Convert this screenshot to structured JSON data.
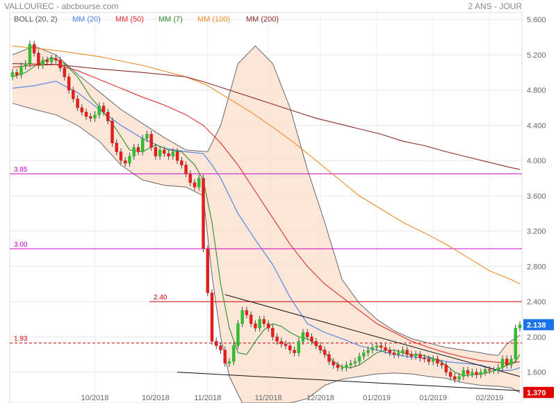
{
  "header": {
    "title": "VALLOUREC - abcbourse.com",
    "period": "2 ANS - JOUR"
  },
  "legend": [
    {
      "label": "BOLL (20, 2)",
      "color": "#555555"
    },
    {
      "label": "MM (20)",
      "color": "#4a7ee8"
    },
    {
      "label": "MM (50)",
      "color": "#e02a2a"
    },
    {
      "label": "MM (7)",
      "color": "#2e8b2e"
    },
    {
      "label": "MM (100)",
      "color": "#f08a24"
    },
    {
      "label": "MM (200)",
      "color": "#8b2a2a"
    }
  ],
  "colors": {
    "up_candle": "#33bb33",
    "down_candle": "#e02020",
    "boll_fill": "#fbe3d4",
    "boll_line": "#666666",
    "magenta": "#cc00cc",
    "resistance": "#cc0000",
    "price_badge": "#1a73e8",
    "low_badge": "#e00000"
  },
  "chart_data": {
    "type": "line",
    "title": "VALLOUREC",
    "x_tick_labels": [
      "10/2018",
      "10/2018",
      "11/2018",
      "11/2018",
      "12/2018",
      "01/2019",
      "01/2019",
      "02/2019"
    ],
    "y_ticks": [
      1.6,
      2.0,
      2.4,
      2.8,
      3.2,
      3.6,
      4.0,
      4.4,
      4.8,
      5.2,
      5.6
    ],
    "y_tick_labels": [
      "1.600",
      "2.000",
      "2.400",
      "2.800",
      "3.200",
      "3.600",
      "4.000",
      "4.400",
      "4.800",
      "5.200",
      "5.600"
    ],
    "ylim": [
      1.25,
      5.68
    ],
    "log_scale": false,
    "grid": true,
    "hlines": [
      {
        "value": 3.85,
        "label": "3.85",
        "color": "#cc00cc",
        "style": "solid"
      },
      {
        "value": 3.0,
        "label": "3.00",
        "color": "#cc00cc",
        "style": "solid"
      },
      {
        "value": 2.4,
        "label": "2.40",
        "color": "#cc0000",
        "style": "solid"
      },
      {
        "value": 1.93,
        "label": "1.93",
        "color": "#cc0000",
        "style": "dashed"
      }
    ],
    "price_badges": [
      {
        "value": 2.138,
        "label": "2.138",
        "color": "#1a73e8"
      },
      {
        "value": 1.37,
        "label": "1.370",
        "color": "#e00000"
      }
    ],
    "closes": [
      5.0,
      4.97,
      5.07,
      5.1,
      5.32,
      5.22,
      5.08,
      5.14,
      5.12,
      5.16,
      5.14,
      5.05,
      4.95,
      4.8,
      4.7,
      4.6,
      4.55,
      4.5,
      4.48,
      4.52,
      4.62,
      4.55,
      4.45,
      4.2,
      4.1,
      4.0,
      3.97,
      4.05,
      4.15,
      4.1,
      4.25,
      4.3,
      4.15,
      4.05,
      4.12,
      4.08,
      4.05,
      4.1,
      4.0,
      3.95,
      3.85,
      3.75,
      3.7,
      3.8,
      3.0,
      2.5,
      1.95,
      1.9,
      1.85,
      1.7,
      1.72,
      1.9,
      2.15,
      2.3,
      2.25,
      2.15,
      2.1,
      2.2,
      2.15,
      2.1,
      2.0,
      1.95,
      1.92,
      1.9,
      1.85,
      1.82,
      1.95,
      2.05,
      2.0,
      1.95,
      1.9,
      1.85,
      1.8,
      1.72,
      1.68,
      1.65,
      1.65,
      1.68,
      1.7,
      1.72,
      1.78,
      1.82,
      1.85,
      1.88,
      1.9,
      1.88,
      1.85,
      1.82,
      1.8,
      1.82,
      1.85,
      1.8,
      1.78,
      1.8,
      1.76,
      1.75,
      1.72,
      1.75,
      1.7,
      1.68,
      1.6,
      1.55,
      1.52,
      1.55,
      1.62,
      1.58,
      1.6,
      1.57,
      1.6,
      1.63,
      1.62,
      1.62,
      1.65,
      1.75,
      1.68,
      1.75,
      2.1,
      2.138
    ],
    "series": [
      {
        "name": "BOLL upper (20, 2)",
        "values": [
          [
            0,
            5.2
          ],
          [
            5,
            5.3
          ],
          [
            10,
            5.2
          ],
          [
            15,
            4.98
          ],
          [
            20,
            4.78
          ],
          [
            25,
            4.58
          ],
          [
            30,
            4.42
          ],
          [
            35,
            4.26
          ],
          [
            40,
            4.12
          ],
          [
            45,
            4.1
          ],
          [
            48,
            4.4
          ],
          [
            52,
            5.1
          ],
          [
            56,
            5.3
          ],
          [
            60,
            5.1
          ],
          [
            64,
            4.6
          ],
          [
            68,
            3.9
          ],
          [
            72,
            3.3
          ],
          [
            76,
            2.65
          ],
          [
            80,
            2.38
          ],
          [
            84,
            2.2
          ],
          [
            88,
            2.07
          ],
          [
            92,
            1.98
          ],
          [
            96,
            1.93
          ],
          [
            100,
            1.88
          ],
          [
            104,
            1.85
          ],
          [
            108,
            1.82
          ],
          [
            110,
            1.8
          ],
          [
            112,
            1.79
          ],
          [
            114,
            1.92
          ],
          [
            117,
            2.02
          ]
        ]
      },
      {
        "name": "BOLL lower (20, 2)",
        "values": [
          [
            0,
            4.65
          ],
          [
            5,
            4.58
          ],
          [
            10,
            4.52
          ],
          [
            15,
            4.4
          ],
          [
            20,
            4.22
          ],
          [
            25,
            3.95
          ],
          [
            30,
            3.78
          ],
          [
            35,
            3.72
          ],
          [
            40,
            3.7
          ],
          [
            44,
            3.6
          ],
          [
            46,
            2.7
          ],
          [
            48,
            2.0
          ],
          [
            50,
            1.55
          ],
          [
            53,
            1.25
          ],
          [
            58,
            1.25
          ],
          [
            64,
            1.25
          ],
          [
            68,
            1.3
          ],
          [
            72,
            1.45
          ],
          [
            76,
            1.52
          ],
          [
            80,
            1.55
          ],
          [
            84,
            1.58
          ],
          [
            88,
            1.59
          ],
          [
            92,
            1.58
          ],
          [
            96,
            1.55
          ],
          [
            100,
            1.53
          ],
          [
            104,
            1.48
          ],
          [
            108,
            1.45
          ],
          [
            112,
            1.44
          ],
          [
            115,
            1.42
          ],
          [
            117,
            1.37
          ]
        ]
      },
      {
        "name": "MM (20)",
        "values": [
          [
            0,
            4.82
          ],
          [
            5,
            4.85
          ],
          [
            10,
            4.9
          ],
          [
            15,
            4.77
          ],
          [
            20,
            4.58
          ],
          [
            25,
            4.4
          ],
          [
            30,
            4.25
          ],
          [
            35,
            4.14
          ],
          [
            40,
            4.1
          ],
          [
            44,
            4.08
          ],
          [
            46,
            3.95
          ],
          [
            48,
            3.8
          ],
          [
            52,
            3.4
          ],
          [
            56,
            3.1
          ],
          [
            60,
            2.82
          ],
          [
            64,
            2.45
          ],
          [
            68,
            2.15
          ],
          [
            72,
            2.05
          ],
          [
            76,
            1.98
          ],
          [
            80,
            1.9
          ],
          [
            84,
            1.85
          ],
          [
            88,
            1.8
          ],
          [
            92,
            1.77
          ],
          [
            96,
            1.76
          ],
          [
            100,
            1.72
          ],
          [
            104,
            1.7
          ],
          [
            108,
            1.68
          ],
          [
            112,
            1.62
          ],
          [
            115,
            1.62
          ],
          [
            117,
            1.65
          ]
        ]
      },
      {
        "name": "MM (50)",
        "values": [
          [
            0,
            5.06
          ],
          [
            5,
            5.08
          ],
          [
            10,
            5.09
          ],
          [
            15,
            5.02
          ],
          [
            20,
            4.92
          ],
          [
            25,
            4.82
          ],
          [
            30,
            4.72
          ],
          [
            35,
            4.63
          ],
          [
            40,
            4.52
          ],
          [
            44,
            4.4
          ],
          [
            48,
            4.2
          ],
          [
            52,
            3.95
          ],
          [
            56,
            3.65
          ],
          [
            60,
            3.35
          ],
          [
            64,
            3.05
          ],
          [
            68,
            2.8
          ],
          [
            72,
            2.6
          ],
          [
            76,
            2.45
          ],
          [
            80,
            2.3
          ],
          [
            84,
            2.15
          ],
          [
            88,
            2.05
          ],
          [
            92,
            1.95
          ],
          [
            96,
            1.88
          ],
          [
            100,
            1.82
          ],
          [
            104,
            1.77
          ],
          [
            108,
            1.73
          ],
          [
            112,
            1.71
          ],
          [
            115,
            1.7
          ],
          [
            117,
            1.72
          ]
        ]
      },
      {
        "name": "MM (7)",
        "values": [
          [
            0,
            4.95
          ],
          [
            3,
            5.0
          ],
          [
            6,
            5.1
          ],
          [
            9,
            5.17
          ],
          [
            12,
            5.1
          ],
          [
            15,
            4.95
          ],
          [
            18,
            4.72
          ],
          [
            21,
            4.55
          ],
          [
            24,
            4.35
          ],
          [
            27,
            4.12
          ],
          [
            30,
            4.1
          ],
          [
            33,
            4.18
          ],
          [
            36,
            4.12
          ],
          [
            39,
            4.1
          ],
          [
            42,
            3.95
          ],
          [
            44,
            3.78
          ],
          [
            46,
            3.3
          ],
          [
            48,
            2.6
          ],
          [
            50,
            2.1
          ],
          [
            52,
            1.82
          ],
          [
            54,
            1.8
          ],
          [
            56,
            1.95
          ],
          [
            58,
            2.08
          ],
          [
            60,
            2.15
          ],
          [
            62,
            2.12
          ],
          [
            64,
            2.05
          ],
          [
            66,
            2.0
          ],
          [
            68,
            1.98
          ],
          [
            70,
            1.92
          ],
          [
            72,
            1.82
          ],
          [
            74,
            1.72
          ],
          [
            76,
            1.66
          ],
          [
            78,
            1.65
          ],
          [
            80,
            1.68
          ],
          [
            82,
            1.75
          ],
          [
            84,
            1.82
          ],
          [
            86,
            1.85
          ],
          [
            88,
            1.85
          ],
          [
            90,
            1.82
          ],
          [
            92,
            1.8
          ],
          [
            94,
            1.8
          ],
          [
            96,
            1.77
          ],
          [
            98,
            1.74
          ],
          [
            100,
            1.68
          ],
          [
            102,
            1.6
          ],
          [
            104,
            1.56
          ],
          [
            106,
            1.57
          ],
          [
            108,
            1.58
          ],
          [
            110,
            1.6
          ],
          [
            112,
            1.63
          ],
          [
            114,
            1.68
          ],
          [
            116,
            1.72
          ],
          [
            117,
            1.8
          ]
        ]
      },
      {
        "name": "MM (100)",
        "values": [
          [
            0,
            5.3
          ],
          [
            10,
            5.25
          ],
          [
            20,
            5.18
          ],
          [
            30,
            5.08
          ],
          [
            40,
            4.95
          ],
          [
            45,
            4.85
          ],
          [
            50,
            4.7
          ],
          [
            55,
            4.55
          ],
          [
            60,
            4.38
          ],
          [
            65,
            4.2
          ],
          [
            70,
            4.0
          ],
          [
            75,
            3.8
          ],
          [
            80,
            3.6
          ],
          [
            85,
            3.45
          ],
          [
            90,
            3.3
          ],
          [
            95,
            3.18
          ],
          [
            100,
            3.05
          ],
          [
            105,
            2.9
          ],
          [
            110,
            2.75
          ],
          [
            115,
            2.65
          ],
          [
            117,
            2.6
          ]
        ]
      },
      {
        "name": "MM (200)",
        "values": [
          [
            0,
            5.1
          ],
          [
            10,
            5.09
          ],
          [
            20,
            5.04
          ],
          [
            30,
            5.0
          ],
          [
            40,
            4.95
          ],
          [
            45,
            4.88
          ],
          [
            50,
            4.8
          ],
          [
            55,
            4.72
          ],
          [
            60,
            4.64
          ],
          [
            65,
            4.56
          ],
          [
            70,
            4.48
          ],
          [
            75,
            4.42
          ],
          [
            80,
            4.36
          ],
          [
            85,
            4.3
          ],
          [
            90,
            4.22
          ],
          [
            95,
            4.17
          ],
          [
            100,
            4.1
          ],
          [
            105,
            4.04
          ],
          [
            110,
            3.98
          ],
          [
            115,
            3.92
          ],
          [
            117,
            3.9
          ]
        ]
      },
      {
        "name": "Trend line upper",
        "values": [
          [
            49,
            2.48
          ],
          [
            117,
            1.55
          ]
        ]
      },
      {
        "name": "Trend line lower",
        "values": [
          [
            38,
            1.6
          ],
          [
            117,
            1.39
          ]
        ]
      }
    ]
  }
}
